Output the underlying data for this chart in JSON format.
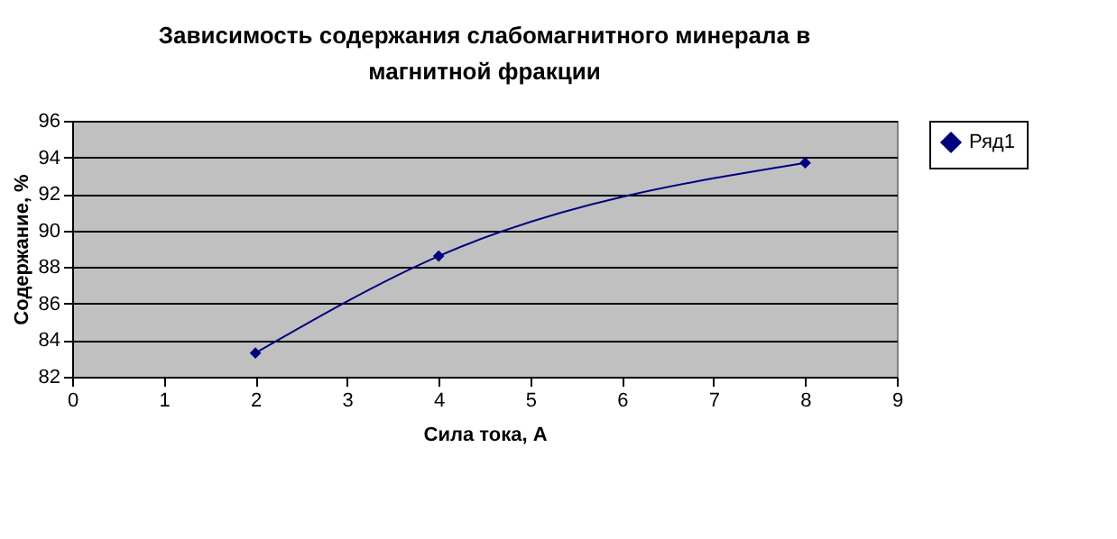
{
  "chart_data": {
    "type": "line",
    "title": "Зависимость содержания слабомагнитного минерала в магнитной фракции",
    "xlabel": "Сила тока, А",
    "ylabel": "Содержание, %",
    "x": [
      2,
      4,
      8
    ],
    "series": [
      {
        "name": "Ряд1",
        "color": "#000080",
        "values": [
          83.3,
          88.6,
          93.7
        ]
      }
    ],
    "xlim": [
      0,
      9
    ],
    "xticks": [
      0,
      1,
      2,
      3,
      4,
      5,
      6,
      7,
      8,
      9
    ],
    "ylim": [
      82,
      96
    ],
    "yticks": [
      82,
      84,
      86,
      88,
      90,
      92,
      94,
      96
    ],
    "grid": "y",
    "legend": "right",
    "marker": "diamond",
    "line_style": "solid"
  }
}
